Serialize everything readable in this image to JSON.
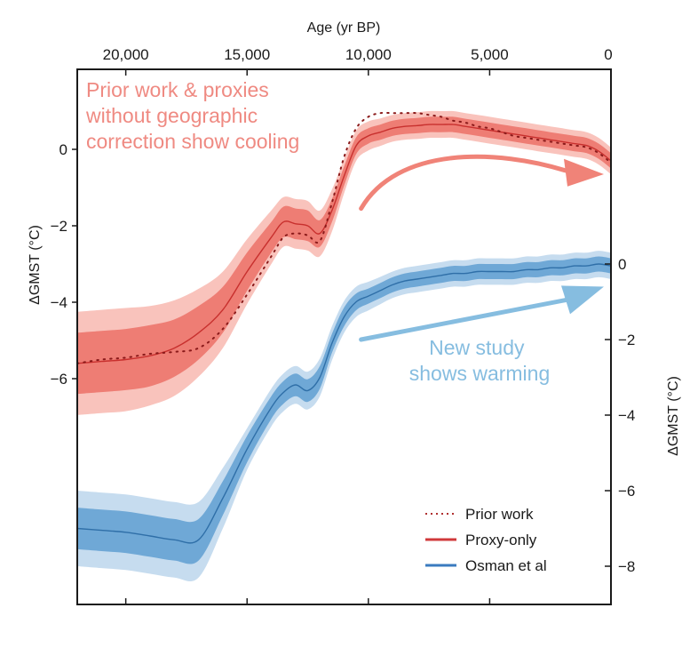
{
  "chart_data": {
    "type": "line",
    "title": "",
    "xlabel": "Age (yr BP)",
    "ylabel_left": "ΔGMST (°C)",
    "ylabel_right": "ΔGMST (°C)",
    "x_axis_reversed": true,
    "xlim": [
      22000,
      0
    ],
    "ylim_left": [
      -10.7,
      1.9
    ],
    "ylim_right": [
      -9,
      3
    ],
    "x_ticks": [
      20000,
      15000,
      10000,
      5000,
      0
    ],
    "x_tick_labels": [
      "20,000",
      "15,000",
      "10,000",
      "5,000",
      "0"
    ],
    "y_left_ticks": [
      0,
      -2,
      -4,
      -6
    ],
    "y_left_tick_labels": [
      "0",
      "−2",
      "−4",
      "−6"
    ],
    "y_right_ticks": [
      0,
      -2,
      -4,
      -6,
      -8
    ],
    "y_right_tick_labels": [
      "0",
      "−2",
      "−4",
      "−6",
      "−8"
    ],
    "grid": false,
    "legend_position": "bottom-right",
    "x": [
      22000,
      21000,
      20000,
      19000,
      18000,
      17000,
      16000,
      15000,
      14000,
      13500,
      13000,
      12500,
      12000,
      11500,
      11000,
      10500,
      10000,
      9500,
      9000,
      8500,
      8000,
      7500,
      7000,
      6500,
      6000,
      5500,
      5000,
      4500,
      4000,
      3500,
      3000,
      2500,
      2000,
      1500,
      1000,
      500,
      0
    ],
    "series": [
      {
        "name": "Prior work",
        "axis": "left",
        "style": "dotted",
        "color": "#8b1a1a",
        "values": [
          -5.6,
          -5.5,
          -5.45,
          -5.35,
          -5.3,
          -5.2,
          -4.7,
          -3.8,
          -2.8,
          -2.3,
          -2.2,
          -2.25,
          -2.4,
          -1.4,
          -0.2,
          0.55,
          0.85,
          0.95,
          0.95,
          0.95,
          0.95,
          0.9,
          0.85,
          0.75,
          0.7,
          0.6,
          0.55,
          0.45,
          0.35,
          0.3,
          0.25,
          0.2,
          0.15,
          0.1,
          0.05,
          -0.1,
          -0.35
        ]
      },
      {
        "name": "Proxy-only",
        "axis": "left",
        "style": "solid",
        "color": "#c8302e",
        "band_color_inner": "#ee7d74",
        "band_color_outer": "#f9c3bc",
        "values": [
          -5.6,
          -5.55,
          -5.5,
          -5.4,
          -5.2,
          -4.8,
          -4.2,
          -3.2,
          -2.3,
          -1.9,
          -1.95,
          -2.0,
          -2.2,
          -1.6,
          -0.7,
          0.1,
          0.35,
          0.45,
          0.55,
          0.6,
          0.62,
          0.65,
          0.65,
          0.65,
          0.6,
          0.55,
          0.5,
          0.45,
          0.4,
          0.35,
          0.3,
          0.25,
          0.2,
          0.15,
          0.1,
          -0.05,
          -0.3
        ],
        "band_inner_halfwidth": [
          0.8,
          0.8,
          0.8,
          0.8,
          0.75,
          0.7,
          0.6,
          0.5,
          0.4,
          0.4,
          0.4,
          0.4,
          0.35,
          0.3,
          0.25,
          0.22,
          0.2,
          0.2,
          0.2,
          0.2,
          0.2,
          0.2,
          0.2,
          0.2,
          0.2,
          0.2,
          0.2,
          0.2,
          0.2,
          0.2,
          0.2,
          0.2,
          0.2,
          0.2,
          0.2,
          0.2,
          0.2
        ],
        "band_outer_halfwidth": [
          1.35,
          1.35,
          1.35,
          1.3,
          1.25,
          1.15,
          1.0,
          0.85,
          0.7,
          0.65,
          0.65,
          0.65,
          0.6,
          0.55,
          0.45,
          0.4,
          0.38,
          0.36,
          0.35,
          0.35,
          0.35,
          0.35,
          0.35,
          0.35,
          0.35,
          0.35,
          0.35,
          0.35,
          0.35,
          0.35,
          0.35,
          0.35,
          0.35,
          0.35,
          0.35,
          0.35,
          0.35
        ]
      },
      {
        "name": "Osman et al",
        "axis": "right",
        "style": "solid",
        "color": "#2f6fa8",
        "band_color_inner": "#6fa8d6",
        "band_color_outer": "#c6dcef",
        "values": [
          -7.0,
          -7.05,
          -7.1,
          -7.2,
          -7.3,
          -7.3,
          -6.2,
          -4.9,
          -3.8,
          -3.4,
          -3.2,
          -3.35,
          -3.0,
          -2.1,
          -1.4,
          -1.0,
          -0.85,
          -0.7,
          -0.55,
          -0.45,
          -0.4,
          -0.35,
          -0.3,
          -0.25,
          -0.25,
          -0.2,
          -0.2,
          -0.2,
          -0.2,
          -0.15,
          -0.15,
          -0.1,
          -0.1,
          -0.05,
          -0.05,
          0.0,
          -0.05
        ],
        "band_inner_halfwidth": [
          0.55,
          0.55,
          0.55,
          0.55,
          0.55,
          0.55,
          0.45,
          0.35,
          0.3,
          0.3,
          0.3,
          0.3,
          0.3,
          0.25,
          0.25,
          0.22,
          0.2,
          0.2,
          0.2,
          0.2,
          0.2,
          0.2,
          0.2,
          0.2,
          0.2,
          0.2,
          0.2,
          0.2,
          0.2,
          0.2,
          0.2,
          0.2,
          0.2,
          0.2,
          0.2,
          0.2,
          0.2
        ],
        "band_outer_halfwidth": [
          1.0,
          1.0,
          1.0,
          1.0,
          1.0,
          1.0,
          0.8,
          0.55,
          0.5,
          0.5,
          0.5,
          0.5,
          0.5,
          0.45,
          0.42,
          0.4,
          0.38,
          0.36,
          0.35,
          0.35,
          0.35,
          0.35,
          0.35,
          0.35,
          0.35,
          0.35,
          0.35,
          0.35,
          0.35,
          0.35,
          0.35,
          0.35,
          0.35,
          0.35,
          0.35,
          0.35,
          0.35
        ]
      }
    ],
    "annotations": [
      {
        "name": "cooling-note",
        "lines": [
          "Prior work & proxies",
          "without geographic",
          "correction show cooling"
        ],
        "color": "#ef8a82"
      },
      {
        "name": "warming-note",
        "lines": [
          "New study",
          "shows warming"
        ],
        "color": "#86bde0"
      }
    ],
    "arrows": [
      {
        "name": "cooling-arrow",
        "color": "#f08378",
        "from_age": 10300,
        "to_age": 0,
        "shape": "arc-down"
      },
      {
        "name": "warming-arrow",
        "color": "#86bde0",
        "from_age": 10300,
        "to_age": 0,
        "shape": "straight-up"
      }
    ],
    "legend": [
      {
        "label": "Prior work",
        "style": "dotted",
        "color": "#b03030"
      },
      {
        "label": "Proxy-only",
        "style": "solid",
        "color": "#d0393b"
      },
      {
        "label": "Osman et al",
        "style": "solid",
        "color": "#3a7bbf"
      }
    ]
  }
}
